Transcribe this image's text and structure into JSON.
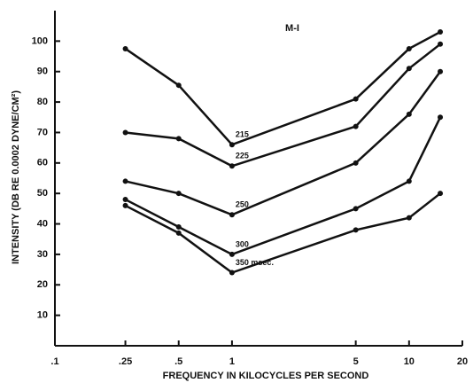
{
  "chart_data": {
    "type": "line",
    "title": "M-I",
    "xlabel": "FREQUENCY IN KILOCYCLES PER SECOND",
    "ylabel": "INTENSITY (DB RE 0.0002 DYNE/CM²)",
    "x": [
      0.25,
      0.5,
      1,
      5,
      10,
      15
    ],
    "xscale": "log",
    "xlim": [
      0.1,
      20
    ],
    "xticks": [
      {
        "value": 0.1,
        "label": ".1"
      },
      {
        "value": 0.25,
        "label": ".25"
      },
      {
        "value": 0.5,
        "label": ".5"
      },
      1,
      5,
      10,
      20
    ],
    "ylim": [
      0,
      110
    ],
    "yticks": [
      10,
      20,
      30,
      40,
      50,
      60,
      70,
      80,
      90,
      100
    ],
    "grid": false,
    "series": [
      {
        "name": "215",
        "color": "#111111",
        "values": [
          97.5,
          85.5,
          66,
          81,
          97.5,
          103
        ]
      },
      {
        "name": "225",
        "color": "#111111",
        "values": [
          70,
          68,
          59,
          72,
          91,
          99
        ]
      },
      {
        "name": "250",
        "color": "#111111",
        "values": [
          54,
          50,
          43,
          60,
          76,
          90
        ]
      },
      {
        "name": "300",
        "color": "#111111",
        "values": [
          48,
          39,
          30,
          45,
          54,
          75
        ]
      },
      {
        "name": "350 msec.",
        "color": "#111111",
        "values": [
          46,
          37,
          24,
          38,
          42,
          50
        ]
      }
    ]
  }
}
